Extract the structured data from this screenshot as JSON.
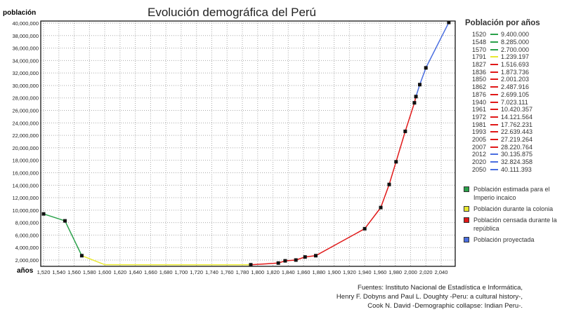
{
  "chart_data": {
    "type": "line",
    "title": "Evolución demográfica del Perú",
    "ylabel": "población",
    "xlabel": "años",
    "xlim": [
      1520,
      2050
    ],
    "ylim": [
      1100000,
      40300000
    ],
    "xticks": [
      1520,
      1540,
      1560,
      1580,
      1600,
      1620,
      1640,
      1660,
      1680,
      1700,
      1720,
      1740,
      1760,
      1780,
      1800,
      1820,
      1840,
      1860,
      1880,
      1900,
      1920,
      1940,
      1960,
      1980,
      2000,
      2020,
      2040
    ],
    "xtick_labels": [
      "1,520",
      "1,540",
      "1,560",
      "1,580",
      "1,600",
      "1,620",
      "1,640",
      "1,660",
      "1,680",
      "1,700",
      "1,720",
      "1,740",
      "1,760",
      "1,780",
      "1,800",
      "1,820",
      "1,840",
      "1,860",
      "1,880",
      "1,900",
      "1,920",
      "1,940",
      "1,960",
      "1,980",
      "2,000",
      "2,020",
      "2,040"
    ],
    "yticks": [
      2000000,
      4000000,
      6000000,
      8000000,
      10000000,
      12000000,
      14000000,
      16000000,
      18000000,
      20000000,
      22000000,
      24000000,
      26000000,
      28000000,
      30000000,
      32000000,
      34000000,
      36000000,
      38000000,
      40000000
    ],
    "ytick_labels": [
      "2,000,000",
      "4,000,000",
      "6,000,000",
      "8,000,000",
      "10,000,000",
      "12,000,000",
      "14,000,000",
      "16,000,000",
      "18,000,000",
      "20,000,000",
      "22,000,000",
      "24,000,000",
      "26,000,000",
      "28,000,000",
      "30,000,000",
      "32,000,000",
      "34,000,000",
      "36,000,000",
      "38,000,000",
      "40,000,000"
    ],
    "grid": true,
    "series": [
      {
        "name": "Población estimada para el Imperio incaico",
        "color": "#2aa14a",
        "x": [
          1520,
          1548,
          1570
        ],
        "y": [
          9400000,
          8285000,
          2700000
        ]
      },
      {
        "name": "Población durante la colonia",
        "color": "#e8e830",
        "x": [
          1570,
          1600,
          1791
        ],
        "y": [
          2700000,
          1250000,
          1239197
        ]
      },
      {
        "name": "Población censada durante la república",
        "color": "#e01818",
        "x": [
          1791,
          1827,
          1836,
          1850,
          1862,
          1876,
          1940,
          1961,
          1972,
          1981,
          1993,
          2005,
          2007
        ],
        "y": [
          1239197,
          1516693,
          1873736,
          2001203,
          2487916,
          2699105,
          7023111,
          10420357,
          14121564,
          17762231,
          22639443,
          27219264,
          28220764
        ]
      },
      {
        "name": "Población proyectada",
        "color": "#4a6ee0",
        "x": [
          2007,
          2012,
          2020,
          2050
        ],
        "y": [
          28220764,
          30135875,
          32824358,
          40111393
        ]
      }
    ],
    "markers_x": [
      1520,
      1548,
      1570,
      1791,
      1827,
      1836,
      1850,
      1862,
      1876,
      1940,
      1961,
      1972,
      1981,
      1993,
      2005,
      2007,
      2012,
      2020,
      2050
    ],
    "markers_y": [
      9400000,
      8285000,
      2700000,
      1239197,
      1516693,
      1873736,
      2001203,
      2487916,
      2699105,
      7023111,
      10420357,
      14121564,
      17762231,
      22639443,
      27219264,
      28220764,
      30135875,
      32824358,
      40111393
    ],
    "legend_title": "Población por años",
    "legend_entries": [
      {
        "year": "1520",
        "value": "9.400.000",
        "color": "#2aa14a"
      },
      {
        "year": "1548",
        "value": "8.285.000",
        "color": "#2aa14a"
      },
      {
        "year": "1570",
        "value": "2.700.000",
        "color": "#2aa14a"
      },
      {
        "year": "1791",
        "value": "1.239.197",
        "color": "#e8e830"
      },
      {
        "year": "1827",
        "value": "1.516.693",
        "color": "#e01818"
      },
      {
        "year": "1836",
        "value": "1.873.736",
        "color": "#e01818"
      },
      {
        "year": "1850",
        "value": "2.001.203",
        "color": "#e01818"
      },
      {
        "year": "1862",
        "value": "2.487.916",
        "color": "#e01818"
      },
      {
        "year": "1876",
        "value": "2.699.105",
        "color": "#e01818"
      },
      {
        "year": "1940",
        "value": "7.023.111",
        "color": "#e01818"
      },
      {
        "year": "1961",
        "value": "10.420.357",
        "color": "#e01818"
      },
      {
        "year": "1972",
        "value": "14.121.564",
        "color": "#e01818"
      },
      {
        "year": "1981",
        "value": "17.762.231",
        "color": "#e01818"
      },
      {
        "year": "1993",
        "value": "22.639.443",
        "color": "#e01818"
      },
      {
        "year": "2005",
        "value": "27.219.264",
        "color": "#e01818"
      },
      {
        "year": "2007",
        "value": "28.220.764",
        "color": "#e01818"
      },
      {
        "year": "2012",
        "value": "30.135.875",
        "color": "#4a6ee0"
      },
      {
        "year": "2020",
        "value": "32.824.358",
        "color": "#4a6ee0"
      },
      {
        "year": "2050",
        "value": "40.111.393",
        "color": "#4a6ee0"
      }
    ],
    "category_legend": [
      {
        "label": "Población estimada para el Imperio incaico",
        "color": "#2aa14a"
      },
      {
        "label": "Población durante la colonia",
        "color": "#e8e830"
      },
      {
        "label": "Población censada durante la república",
        "color": "#e01818"
      },
      {
        "label": "Población proyectada",
        "color": "#4a6ee0"
      }
    ]
  },
  "sources": [
    "Fuentes: Instituto Nacional de Estadística e Informática,",
    "Henry F. Dobyns and Paul L. Doughty -Peru: a cultural history-,",
    "Cook N. David -Demographic collapse: Indian Peru-."
  ]
}
